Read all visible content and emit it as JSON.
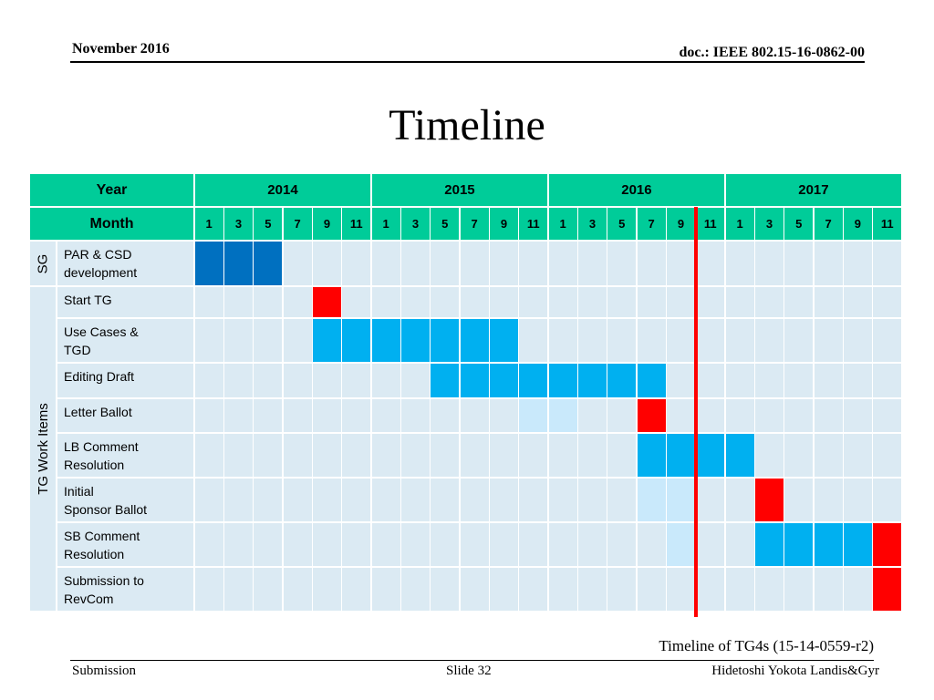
{
  "header": {
    "date": "November 2016",
    "doc": "doc.: IEEE 802.15-16-0862-00"
  },
  "title": "Timeline",
  "table": {
    "year_label": "Year",
    "month_label": "Month",
    "years": [
      "2014",
      "2015",
      "2016",
      "2017"
    ],
    "months": [
      "1",
      "3",
      "5",
      "7",
      "9",
      "11"
    ],
    "groups": [
      {
        "label": "SG",
        "row_start": 0,
        "row_count": 1
      },
      {
        "label": "TG Work Items",
        "row_start": 1,
        "row_count": 8
      }
    ],
    "rows": [
      {
        "label": "PAR & CSD\ndevelopment",
        "cells": [
          {
            "from": 0,
            "to": 2,
            "status": "complete"
          }
        ]
      },
      {
        "label": "Start TG",
        "cells": [
          {
            "from": 4,
            "to": 4,
            "status": "milestone"
          }
        ]
      },
      {
        "label": "Use Cases &\nTGD",
        "cells": [
          {
            "from": 4,
            "to": 10,
            "status": "active"
          }
        ]
      },
      {
        "label": "Editing Draft",
        "cells": [
          {
            "from": 8,
            "to": 15,
            "status": "active"
          }
        ]
      },
      {
        "label": "Letter Ballot",
        "cells": [
          {
            "from": 11,
            "to": 12,
            "status": "tentative"
          },
          {
            "from": 15,
            "to": 15,
            "status": "milestone"
          }
        ]
      },
      {
        "label": "LB Comment\nResolution",
        "cells": [
          {
            "from": 15,
            "to": 18,
            "status": "active"
          }
        ]
      },
      {
        "label": "Initial\nSponsor Ballot",
        "cells": [
          {
            "from": 15,
            "to": 16,
            "status": "tentative"
          },
          {
            "from": 19,
            "to": 19,
            "status": "milestone"
          }
        ]
      },
      {
        "label": "SB Comment\nResolution",
        "cells": [
          {
            "from": 16,
            "to": 16,
            "status": "tentative"
          },
          {
            "from": 19,
            "to": 22,
            "status": "active"
          },
          {
            "from": 23,
            "to": 23,
            "status": "milestone"
          }
        ]
      },
      {
        "label": "Submission to\nRevCom",
        "cells": [
          {
            "from": 23,
            "to": 23,
            "status": "milestone"
          }
        ]
      }
    ],
    "today_marker": {
      "year": "2016",
      "month": "10"
    },
    "colors": {
      "header": "#00cc99",
      "empty": "#dbeaf3",
      "complete": "#0070c0",
      "active": "#00b0f0",
      "tentative": "#c9e9fb",
      "milestone": "#ff0000",
      "marker": "#ff0000"
    }
  },
  "caption": "Timeline of TG4s (15-14-0559-r2)",
  "footer": {
    "left": "Submission",
    "center": "Slide 32",
    "right": "Hidetoshi Yokota Landis&Gyr"
  }
}
